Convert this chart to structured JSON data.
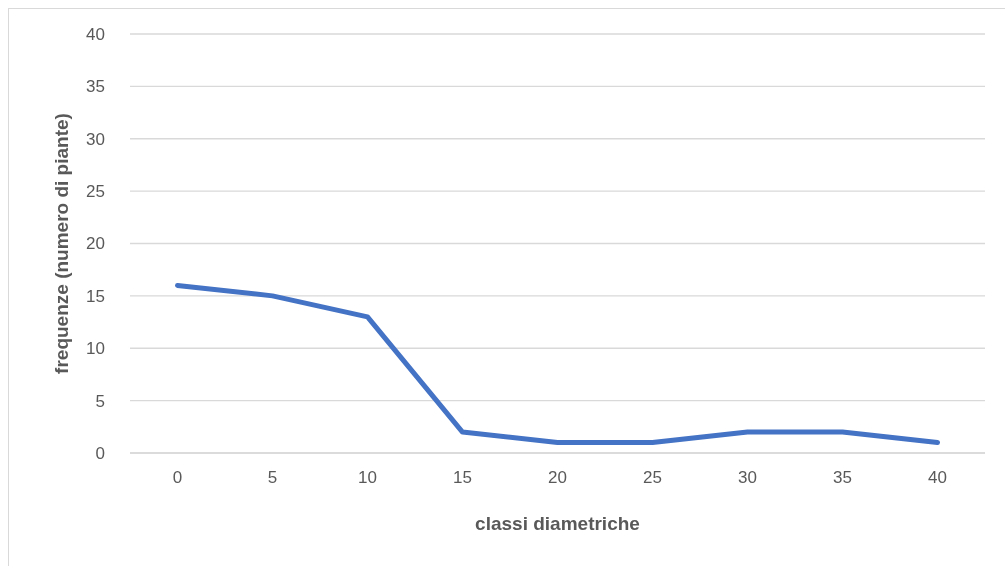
{
  "chart_data": {
    "type": "line",
    "xlabel": "classi diametriche",
    "ylabel": "frequenze (numero di piante)",
    "categories": [
      "0",
      "5",
      "10",
      "15",
      "20",
      "25",
      "30",
      "35",
      "40"
    ],
    "series": [
      {
        "color": "#4472c4",
        "values": [
          16,
          15,
          13,
          2,
          1,
          1,
          2,
          2,
          1
        ]
      }
    ],
    "ylim": [
      0,
      40
    ],
    "yticks": [
      0,
      5,
      10,
      15,
      20,
      25,
      30,
      35,
      40
    ],
    "grid": "y",
    "marker": "none",
    "line_style": "solid"
  }
}
